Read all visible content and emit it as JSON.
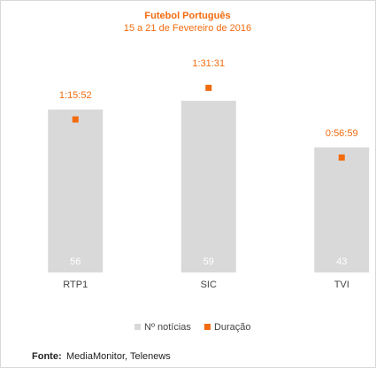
{
  "chart_data": {
    "type": "bar",
    "title": "Futebol Português",
    "subtitle": "15 a 21 de Fevereiro de 2016",
    "categories": [
      "RTP1",
      "SIC",
      "TVI"
    ],
    "series": [
      {
        "name": "Nº notícias",
        "color": "#d9d9d9",
        "values": [
          56,
          59,
          43
        ]
      },
      {
        "name": "Duração",
        "color": "#f26b0f",
        "axis": "y2",
        "values": [
          4552,
          5491,
          3419
        ],
        "value_labels": [
          "1:15:52",
          "1:31:31",
          "0:56:59"
        ]
      }
    ],
    "source_label": "Fonte:",
    "source": "MediaMonitor, Telenews"
  }
}
